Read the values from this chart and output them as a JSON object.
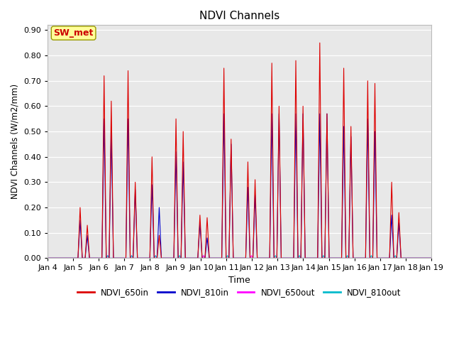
{
  "title": "NDVI Channels",
  "xlabel": "Time",
  "ylabel": "NDVI Channels (W/m2/mm)",
  "ylim": [
    0.0,
    0.92
  ],
  "yticks": [
    0.0,
    0.1,
    0.2,
    0.3,
    0.4,
    0.5,
    0.6,
    0.7,
    0.8,
    0.9
  ],
  "figure_bg": "#ffffff",
  "plot_bg_color": "#e8e8e8",
  "annotation_text": "SW_met",
  "annotation_bg": "#ffff99",
  "annotation_border": "#999900",
  "legend_entries": [
    "NDVI_650in",
    "NDVI_810in",
    "NDVI_650out",
    "NDVI_810out"
  ],
  "legend_colors": [
    "#dd0000",
    "#0000cc",
    "#ff00ff",
    "#00bbcc"
  ],
  "n_days": 16,
  "day_labels": [
    "Jan 4",
    "Jan 5",
    "Jan 6",
    "Jan 7",
    "Jan 8",
    "Jan 9",
    "Jan 10",
    "Jan 11",
    "Jan 12",
    "Jan 13",
    "Jan 14",
    "Jan 15",
    "Jan 16",
    "Jan 17",
    "Jan 18",
    "Jan 19"
  ],
  "peaks_650in": [
    0.0,
    0.2,
    0.72,
    0.74,
    0.4,
    0.55,
    0.17,
    0.75,
    0.38,
    0.77,
    0.78,
    0.85,
    0.75,
    0.7,
    0.3,
    0.0
  ],
  "peaks_650in_2": [
    0.0,
    0.13,
    0.62,
    0.3,
    0.09,
    0.5,
    0.16,
    0.47,
    0.31,
    0.6,
    0.6,
    0.57,
    0.52,
    0.69,
    0.18,
    0.0
  ],
  "peaks_810in": [
    0.0,
    0.15,
    0.55,
    0.55,
    0.29,
    0.42,
    0.14,
    0.57,
    0.28,
    0.57,
    0.57,
    0.57,
    0.52,
    0.55,
    0.17,
    0.0
  ],
  "peaks_810in_2": [
    0.0,
    0.09,
    0.5,
    0.27,
    0.2,
    0.38,
    0.08,
    0.45,
    0.25,
    0.57,
    0.57,
    0.57,
    0.48,
    0.5,
    0.14,
    0.0
  ],
  "peaks_650out": [
    0.0,
    0.0,
    0.01,
    0.01,
    0.01,
    0.0,
    0.01,
    0.0,
    0.01,
    0.0,
    0.0,
    0.0,
    0.0,
    0.0,
    0.0,
    0.0
  ],
  "peaks_810out": [
    0.0,
    0.0,
    0.01,
    0.01,
    0.01,
    0.01,
    0.0,
    0.01,
    0.0,
    0.01,
    0.01,
    0.01,
    0.01,
    0.01,
    0.01,
    0.0
  ],
  "pts_per_day": 100
}
